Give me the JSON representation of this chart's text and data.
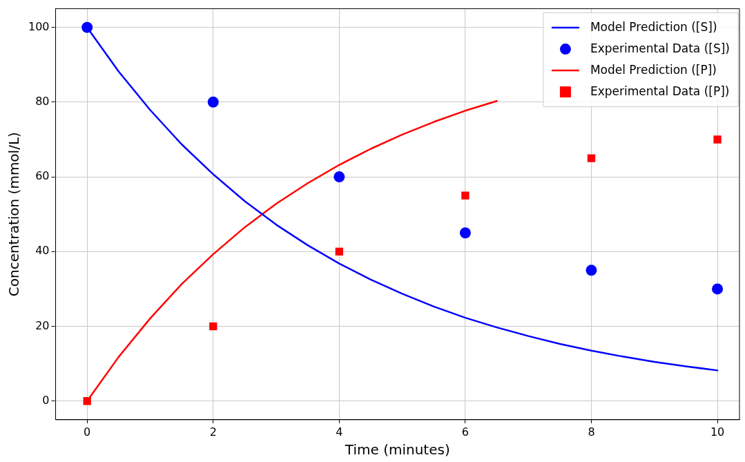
{
  "chart_data": {
    "type": "line",
    "xlabel": "Time (minutes)",
    "ylabel": "Concentration (mmol/L)",
    "xlim": [
      -0.5,
      10.35
    ],
    "ylim": [
      -5,
      105
    ],
    "xticks": [
      0,
      2,
      4,
      6,
      8,
      10
    ],
    "yticks": [
      0,
      20,
      40,
      60,
      80,
      100
    ],
    "grid": true,
    "legend": "top right",
    "line_style": "solid",
    "series": [
      {
        "name": "Model Prediction ([S])",
        "color": "#0000ff",
        "marker": "none",
        "x": [
          0,
          0.5,
          1,
          1.5,
          2,
          2.5,
          3,
          3.5,
          4,
          4.5,
          5,
          5.5,
          6,
          6.5,
          7,
          7.5,
          8,
          8.5,
          9,
          9.5,
          10
        ],
        "values": [
          100,
          88.2,
          77.9,
          68.7,
          60.7,
          53.5,
          47.2,
          41.7,
          36.8,
          32.5,
          28.7,
          25.3,
          22.3,
          19.7,
          17.4,
          15.3,
          13.5,
          11.9,
          10.5,
          9.3,
          8.2
        ]
      },
      {
        "name": "Experimental Data ([S])",
        "type": "scatter",
        "color": "#0000ff",
        "marker": "circle",
        "x": [
          0,
          2,
          4,
          6,
          8,
          10
        ],
        "values": [
          100,
          80,
          60,
          45,
          35,
          30
        ]
      },
      {
        "name": "Model Prediction ([P])",
        "color": "#ff0000",
        "marker": "none",
        "x": [
          0,
          0.5,
          1,
          1.5,
          2,
          2.5,
          3,
          3.5,
          4,
          4.5,
          5,
          5.5,
          6,
          6.5
        ],
        "values": [
          0,
          11.8,
          22.1,
          31.3,
          39.3,
          46.5,
          52.8,
          58.3,
          63.2,
          67.5,
          71.3,
          74.7,
          77.7,
          80.3
        ]
      },
      {
        "name": "Experimental Data ([P])",
        "type": "scatter",
        "color": "#ff0000",
        "marker": "square",
        "x": [
          0,
          2,
          4,
          6,
          8,
          10
        ],
        "values": [
          0,
          20,
          40,
          55,
          65,
          70
        ]
      }
    ]
  }
}
